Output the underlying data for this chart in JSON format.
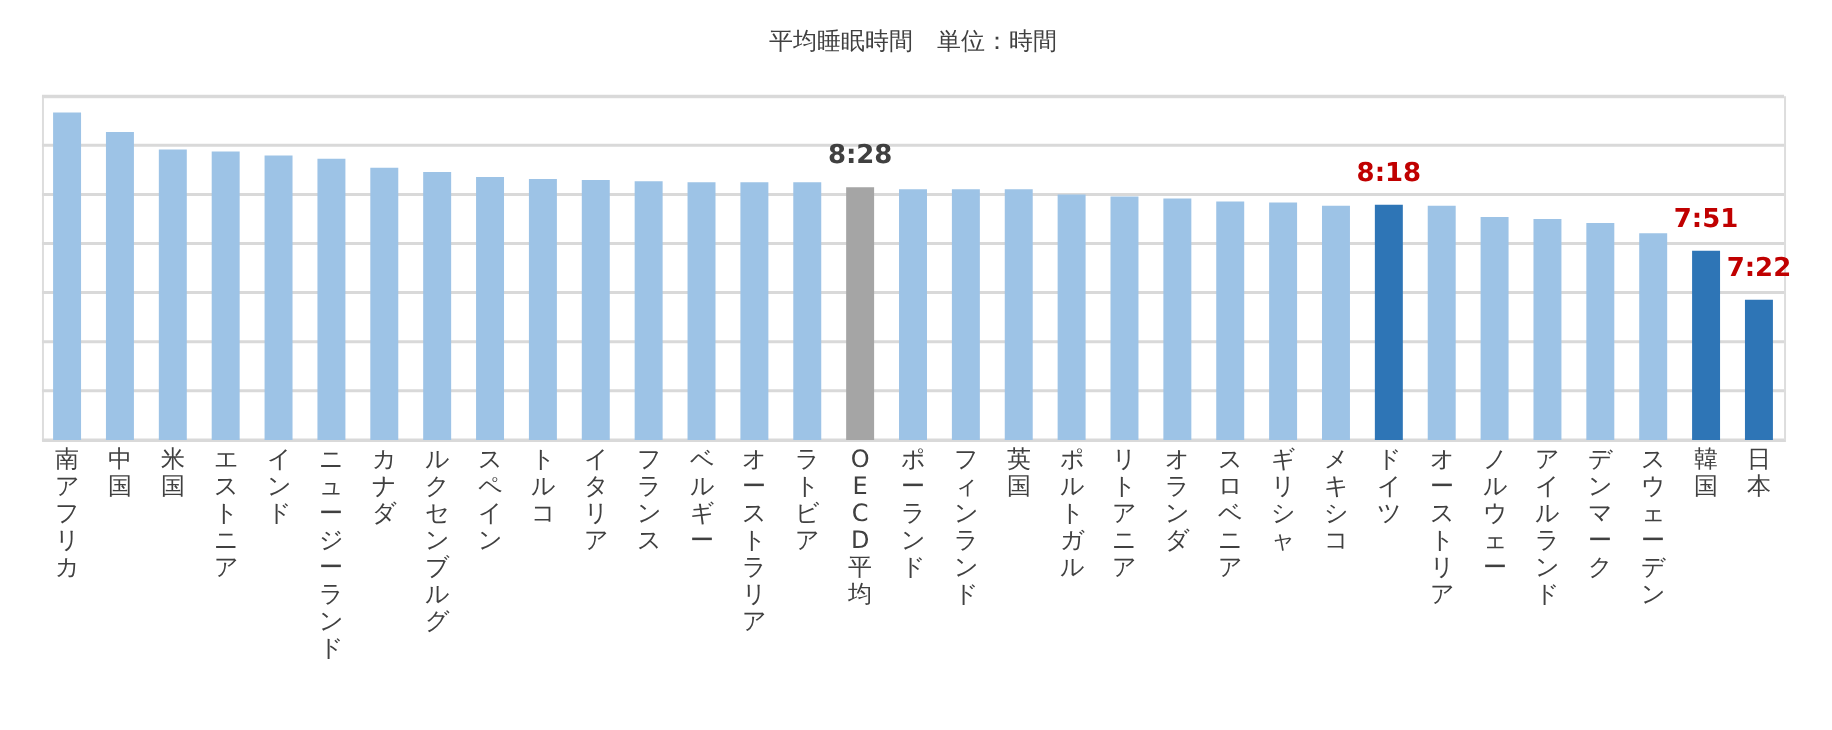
{
  "chart_data": {
    "type": "bar",
    "title": "平均睡眠時間　単位：時間",
    "categories": [
      "南アフリカ",
      "中国",
      "米国",
      "エストニア",
      "インド",
      "ニュージーランド",
      "カナダ",
      "ルクセンブルグ",
      "スペイン",
      "トルコ",
      "イタリア",
      "フランス",
      "ベルギー",
      "オーストラリア",
      "ラトビア",
      "OECD平均",
      "ポーランド",
      "フィンランド",
      "英国",
      "ポルトガル",
      "リトアニア",
      "オランダ",
      "スロベニア",
      "ギリシャ",
      "メキシコ",
      "ドイツ",
      "オーストリア",
      "ノルウェー",
      "アイルランド",
      "デンマーク",
      "スウェーデン",
      "韓国",
      "日本"
    ],
    "values": [
      9.2,
      9.01,
      8.84,
      8.82,
      8.78,
      8.75,
      8.66,
      8.62,
      8.57,
      8.55,
      8.54,
      8.53,
      8.52,
      8.52,
      8.52,
      8.47,
      8.45,
      8.45,
      8.45,
      8.4,
      8.38,
      8.36,
      8.33,
      8.32,
      8.29,
      8.3,
      8.29,
      8.18,
      8.16,
      8.12,
      8.02,
      7.85,
      7.37
    ],
    "colors": [
      "#9dc3e6",
      "#9dc3e6",
      "#9dc3e6",
      "#9dc3e6",
      "#9dc3e6",
      "#9dc3e6",
      "#9dc3e6",
      "#9dc3e6",
      "#9dc3e6",
      "#9dc3e6",
      "#9dc3e6",
      "#9dc3e6",
      "#9dc3e6",
      "#9dc3e6",
      "#9dc3e6",
      "#a5a5a5",
      "#9dc3e6",
      "#9dc3e6",
      "#9dc3e6",
      "#9dc3e6",
      "#9dc3e6",
      "#9dc3e6",
      "#9dc3e6",
      "#9dc3e6",
      "#9dc3e6",
      "#2e75b6",
      "#9dc3e6",
      "#9dc3e6",
      "#9dc3e6",
      "#9dc3e6",
      "#9dc3e6",
      "#2e75b6",
      "#2e75b6"
    ],
    "value_labels": [
      null,
      null,
      null,
      null,
      null,
      null,
      null,
      null,
      null,
      null,
      null,
      null,
      null,
      null,
      null,
      "8:28",
      null,
      null,
      null,
      null,
      null,
      null,
      null,
      null,
      null,
      "8:18",
      null,
      null,
      null,
      null,
      null,
      "7:51",
      "7:22"
    ],
    "ylim": [
      6,
      9.36
    ],
    "yticks": [
      {
        "value": 6,
        "label": null
      },
      {
        "value": 6.48,
        "label": null
      },
      {
        "value": 6.96,
        "label": null
      },
      {
        "value": 7.44,
        "label": null
      },
      {
        "value": 7.92,
        "label": null
      },
      {
        "value": 8.4,
        "label": null
      },
      {
        "value": 8.88,
        "label": null
      },
      {
        "value": 9.36,
        "label": null
      }
    ],
    "grid": "y"
  }
}
